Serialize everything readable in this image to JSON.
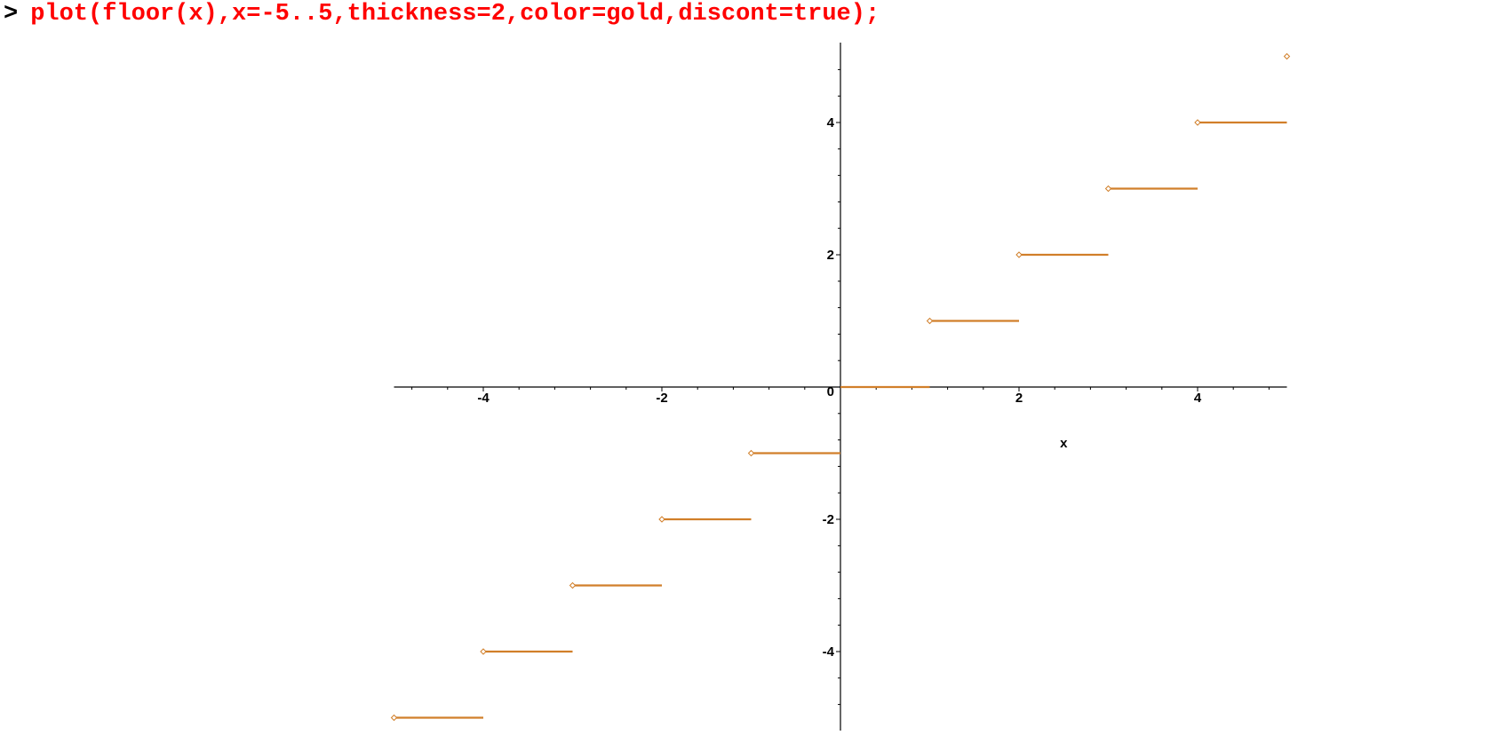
{
  "worksheet": {
    "prompt": ">",
    "command": "plot(floor(x),x=-5..5,thickness=2,color=gold,discont=true);",
    "command_color": "#ff0000"
  },
  "chart_data": {
    "type": "line",
    "function": "floor(x)",
    "title": "",
    "xlabel": "x",
    "ylabel": "",
    "xlim": [
      -5,
      5
    ],
    "ylim": [
      -5,
      5
    ],
    "x_ticks": [
      -4,
      -2,
      2,
      4
    ],
    "y_ticks": [
      -4,
      -2,
      2,
      4
    ],
    "origin_label": "0",
    "grid": false,
    "legend": "none",
    "line_color": "#d17f2a",
    "segments": [
      {
        "x0": -5,
        "x1": -4,
        "y": -5
      },
      {
        "x0": -4,
        "x1": -3,
        "y": -4
      },
      {
        "x0": -3,
        "x1": -2,
        "y": -3
      },
      {
        "x0": -2,
        "x1": -1,
        "y": -2
      },
      {
        "x0": -1,
        "x1": 0,
        "y": -1
      },
      {
        "x0": 0,
        "x1": 1,
        "y": 0
      },
      {
        "x0": 1,
        "x1": 2,
        "y": 1
      },
      {
        "x0": 2,
        "x1": 3,
        "y": 2
      },
      {
        "x0": 3,
        "x1": 4,
        "y": 3
      },
      {
        "x0": 4,
        "x1": 5,
        "y": 4
      }
    ],
    "points": [
      {
        "x": -5,
        "y": -5
      },
      {
        "x": -4,
        "y": -4
      },
      {
        "x": -3,
        "y": -3
      },
      {
        "x": -2,
        "y": -2
      },
      {
        "x": -1,
        "y": -1
      },
      {
        "x": 1,
        "y": 1
      },
      {
        "x": 2,
        "y": 2
      },
      {
        "x": 3,
        "y": 3
      },
      {
        "x": 4,
        "y": 4
      },
      {
        "x": 5,
        "y": 5
      }
    ]
  }
}
